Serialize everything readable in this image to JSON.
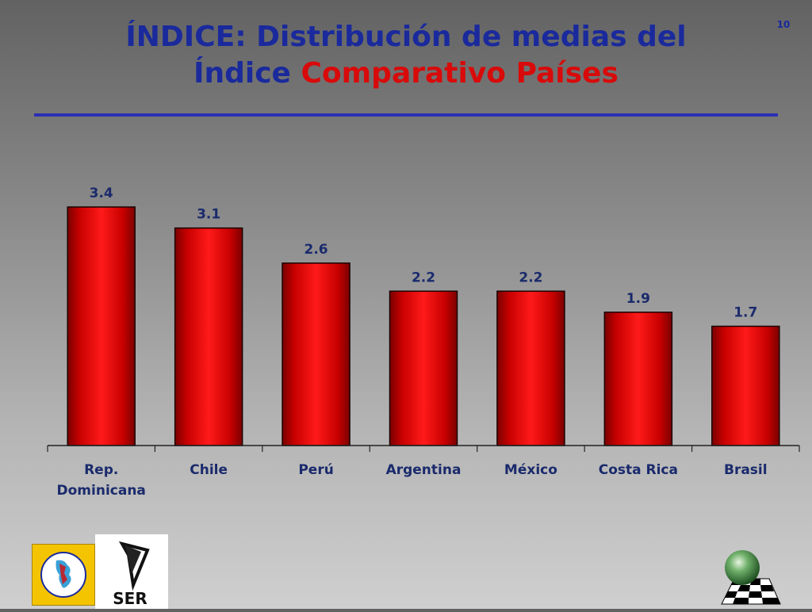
{
  "slide": {
    "title_line1": "ÍNDICE: Distribución de medias del",
    "title_line2_blue": "Índice",
    "title_line2_red": "Comparativo Países",
    "page_number": "10",
    "colors": {
      "title_blue": "#1a2a9c",
      "title_red": "#d80a0a",
      "rule": "#2b2fb4",
      "bar": "#e60000"
    }
  },
  "chart_data": {
    "type": "bar",
    "title": "",
    "xlabel": "",
    "ylabel": "",
    "categories": [
      "Rep. Dominicana",
      "Chile",
      "Perú",
      "Argentina",
      "México",
      "Costa Rica",
      "Brasil"
    ],
    "category_lines": [
      [
        "Rep.",
        "Dominicana"
      ],
      [
        "Chile"
      ],
      [
        "Perú"
      ],
      [
        "Argentina"
      ],
      [
        "México"
      ],
      [
        "Costa Rica"
      ],
      [
        "Brasil"
      ]
    ],
    "values": [
      3.4,
      3.1,
      2.6,
      2.2,
      2.2,
      1.9,
      1.7
    ],
    "data_labels": [
      "3.4",
      "3.1",
      "2.6",
      "2.2",
      "2.2",
      "1.9",
      "1.7"
    ],
    "ylim": [
      0,
      4
    ],
    "grid": false,
    "legend": "none"
  },
  "logos": {
    "left_1": "red-interamericana-logo",
    "left_2_text": "SER",
    "right": "sphere-checkerboard-logo"
  }
}
